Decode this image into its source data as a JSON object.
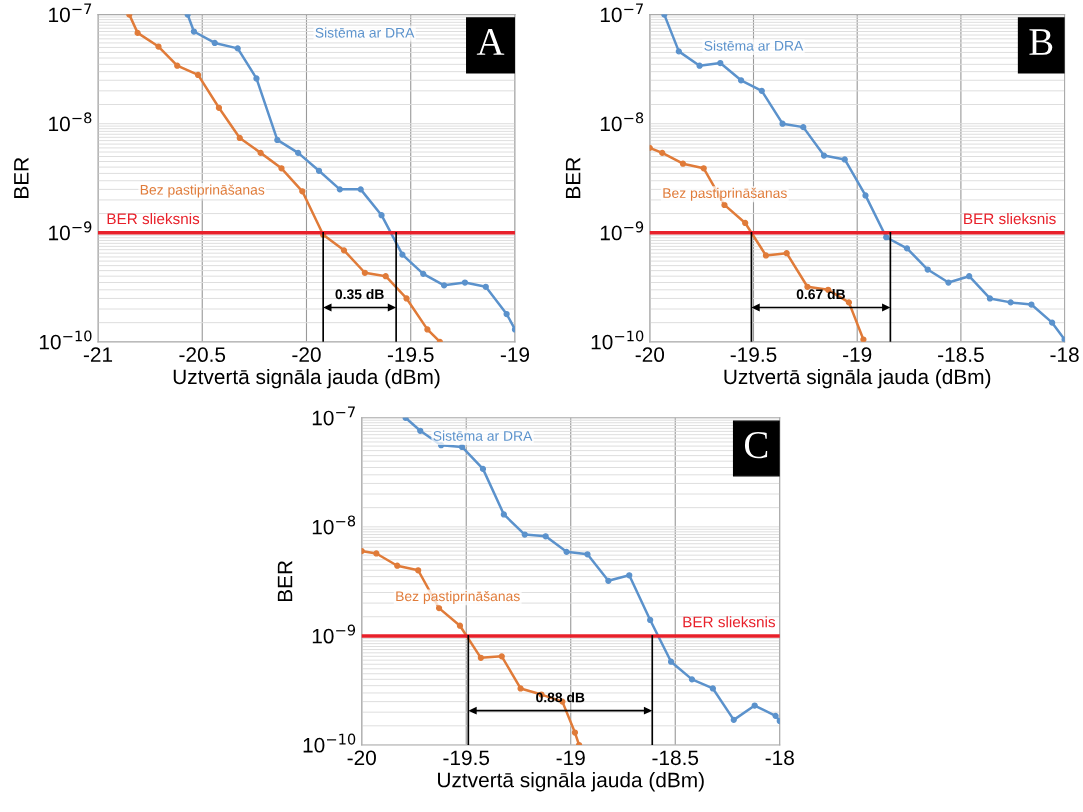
{
  "chart_data": [
    {
      "type": "line",
      "xlabel": "Uztvertā signāla jauda (dBm)",
      "ylabel": "BER",
      "log": "y",
      "grid": true,
      "marker": "circle",
      "line_style": "solid",
      "xlim": [
        -21,
        -19
      ],
      "xticks": [
        -21,
        -20.5,
        -20,
        -19.5,
        -19
      ],
      "ylim": [
        1e-10,
        1e-07
      ],
      "yticks": [
        {
          "value": 1e-10,
          "label": "10$^{−10}$"
        },
        {
          "value": 1e-09,
          "label": "10$^{−9}$"
        },
        {
          "value": 1e-08,
          "label": "10$^{−8}$"
        },
        {
          "value": 1e-07,
          "label": "10$^{−7}$"
        }
      ],
      "series": [
        {
          "name": "Sistēma ar DRA",
          "color": "#5b92cc",
          "x": [
            -20.57,
            -20.54,
            -20.44,
            -20.33,
            -20.24,
            -20.14,
            -20.04,
            -19.94,
            -19.84,
            -19.74,
            -19.64,
            -19.54,
            -19.44,
            -19.34,
            -19.24,
            -19.14,
            -19.04,
            -19.0
          ],
          "values": [
            1e-07,
            7e-08,
            5.5e-08,
            4.9e-08,
            2.6e-08,
            7.1e-09,
            5.4e-09,
            3.7e-09,
            2.5e-09,
            2.5e-09,
            1.45e-09,
            6.3e-10,
            4.2e-10,
            3.3e-10,
            3.5e-10,
            3.2e-10,
            1.8e-10,
            1.3e-10
          ]
        },
        {
          "name": "Bez pastiprināšanas",
          "color": "#e07b39",
          "x": [
            -20.85,
            -20.81,
            -20.71,
            -20.62,
            -20.52,
            -20.42,
            -20.32,
            -20.22,
            -20.12,
            -20.02,
            -19.92,
            -19.82,
            -19.72,
            -19.62,
            -19.52,
            -19.42,
            -19.36
          ],
          "values": [
            1e-07,
            6.8e-08,
            5.1e-08,
            3.4e-08,
            2.8e-08,
            1.4e-08,
            7.4e-09,
            5.4e-09,
            3.9e-09,
            2.4e-09,
            9.6e-10,
            6.9e-10,
            4.3e-10,
            4e-10,
            2.5e-10,
            1.3e-10,
            1e-10
          ]
        }
      ],
      "ref_lines": [
        {
          "axis": "y",
          "value": 1e-09,
          "label": "BER slieksnis",
          "color": "#e8202a"
        },
        {
          "axis": "x",
          "value": -19.92,
          "color": "#000000"
        },
        {
          "axis": "x",
          "value": -19.57,
          "color": "#000000"
        }
      ],
      "annotations": [
        "A",
        "0.35 dB"
      ]
    },
    {
      "type": "line",
      "xlabel": "Uztvertā signāla jauda (dBm)",
      "ylabel": "BER",
      "log": "y",
      "grid": true,
      "marker": "circle",
      "line_style": "solid",
      "xlim": [
        -20,
        -18
      ],
      "xticks": [
        -20,
        -19.5,
        -19,
        -18.5,
        -18
      ],
      "ylim": [
        1e-10,
        1e-07
      ],
      "yticks": [
        {
          "value": 1e-10,
          "label": "10$^{−10}$"
        },
        {
          "value": 1e-09,
          "label": "10$^{−9}$"
        },
        {
          "value": 1e-08,
          "label": "10$^{−8}$"
        },
        {
          "value": 1e-07,
          "label": "10$^{−7}$"
        }
      ],
      "series": [
        {
          "name": "Sistēma ar DRA",
          "color": "#5b92cc",
          "x": [
            -19.93,
            -19.86,
            -19.76,
            -19.66,
            -19.56,
            -19.46,
            -19.36,
            -19.26,
            -19.16,
            -19.06,
            -18.96,
            -18.86,
            -18.76,
            -18.66,
            -18.56,
            -18.46,
            -18.36,
            -18.26,
            -18.16,
            -18.06,
            -18.0
          ],
          "values": [
            1e-07,
            4.6e-08,
            3.4e-08,
            3.6e-08,
            2.5e-08,
            2e-08,
            1e-08,
            9.3e-09,
            5.1e-09,
            4.7e-09,
            2.2e-09,
            9.1e-10,
            7.2e-10,
            4.6e-10,
            3.5e-10,
            4e-10,
            2.5e-10,
            2.3e-10,
            2.2e-10,
            1.5e-10,
            1.05e-10
          ]
        },
        {
          "name": "Bez pastiprināšanas",
          "color": "#e07b39",
          "x": [
            -20.0,
            -19.94,
            -19.84,
            -19.74,
            -19.64,
            -19.54,
            -19.44,
            -19.34,
            -19.24,
            -19.14,
            -19.04,
            -18.97
          ],
          "values": [
            6e-09,
            5.4e-09,
            4.3e-09,
            3.9e-09,
            1.8e-09,
            1.23e-09,
            6.2e-10,
            6.5e-10,
            3.2e-10,
            3e-10,
            2.3e-10,
            1.05e-10
          ]
        }
      ],
      "ref_lines": [
        {
          "axis": "y",
          "value": 1e-09,
          "label": "BER slieksnis",
          "color": "#e8202a"
        },
        {
          "axis": "x",
          "value": -19.51,
          "color": "#000000"
        },
        {
          "axis": "x",
          "value": -18.84,
          "color": "#000000"
        }
      ],
      "annotations": [
        "B",
        "0.67 dB"
      ]
    },
    {
      "type": "line",
      "xlabel": "Uztvertā signāla jauda (dBm)",
      "ylabel": "BER",
      "log": "y",
      "grid": true,
      "marker": "circle",
      "line_style": "solid",
      "xlim": [
        -20,
        -18
      ],
      "xticks": [
        -20,
        -19.5,
        -19,
        -18.5,
        -18
      ],
      "ylim": [
        1e-10,
        1e-07
      ],
      "yticks": [
        {
          "value": 1e-10,
          "label": "10$^{−10}$"
        },
        {
          "value": 1e-09,
          "label": "10$^{−9}$"
        },
        {
          "value": 1e-08,
          "label": "10$^{−8}$"
        },
        {
          "value": 1e-07,
          "label": "10$^{−7}$"
        }
      ],
      "series": [
        {
          "name": "Sistēma ar DRA",
          "color": "#5b92cc",
          "x": [
            -19.79,
            -19.72,
            -19.62,
            -19.52,
            -19.42,
            -19.32,
            -19.22,
            -19.12,
            -19.02,
            -18.92,
            -18.82,
            -18.72,
            -18.62,
            -18.52,
            -18.42,
            -18.32,
            -18.22,
            -18.12,
            -18.02,
            -18.0
          ],
          "values": [
            1e-07,
            7.6e-08,
            5.6e-08,
            5.4e-08,
            3.4e-08,
            1.3e-08,
            8.5e-09,
            8.2e-09,
            5.9e-09,
            5.6e-09,
            3.2e-09,
            3.6e-09,
            1.4e-09,
            5.8e-10,
            4e-10,
            3.3e-10,
            1.7e-10,
            2.3e-10,
            1.85e-10,
            1.66e-10
          ]
        },
        {
          "name": "Bez pastiprināšanas",
          "color": "#e07b39",
          "x": [
            -20.0,
            -19.93,
            -19.83,
            -19.73,
            -19.63,
            -19.53,
            -19.43,
            -19.33,
            -19.24,
            -19.14,
            -19.04,
            -18.98,
            -18.96
          ],
          "values": [
            6e-09,
            5.7e-09,
            4.4e-09,
            4e-09,
            1.8e-09,
            1.24e-09,
            6.3e-10,
            6.5e-10,
            3.3e-10,
            2.9e-10,
            2.5e-10,
            1.3e-10,
            1e-10
          ]
        }
      ],
      "ref_lines": [
        {
          "axis": "y",
          "value": 1e-09,
          "label": "BER slieksnis",
          "color": "#e8202a"
        },
        {
          "axis": "x",
          "value": -19.49,
          "color": "#000000"
        },
        {
          "axis": "x",
          "value": -18.61,
          "color": "#000000"
        }
      ],
      "annotations": [
        "C",
        "0.88 dB"
      ]
    }
  ]
}
